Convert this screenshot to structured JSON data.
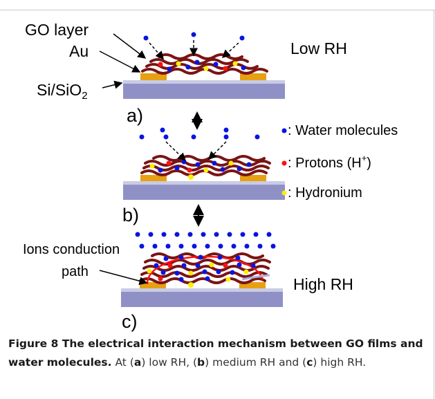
{
  "labels": {
    "go_layer": "GO layer",
    "au": "Au",
    "si_sio2_main": "Si/SiO",
    "si_sio2_sub": "2",
    "panel_a": "a)",
    "panel_b": "b)",
    "panel_c": "c)",
    "low_rh": "Low RH",
    "high_rh": "High RH",
    "ions_line1": "Ions conduction",
    "ions_line2": "path"
  },
  "legend": {
    "water": ": Water molecules",
    "protons_prefix": ": Protons (H",
    "protons_sup": "+",
    "protons_suffix": ")",
    "hydronium": ": Hydronium"
  },
  "caption": {
    "bold": "Figure 8 The electrical interaction mechanism between GO films and water molecules.",
    "t1": " At (",
    "a": "a",
    "t2": ") low RH, (",
    "b": "b",
    "t3": ") medium RH and (",
    "c": "c",
    "t4": ") high RH."
  },
  "colors": {
    "water": "#0a14e0",
    "proton": "#ff1010",
    "hydronium": "#ffee00",
    "go_sheet": "#7a1414",
    "gold": "#e6a012",
    "substrate": "#8f91c6",
    "substrate_top": "#c9cbe6"
  }
}
